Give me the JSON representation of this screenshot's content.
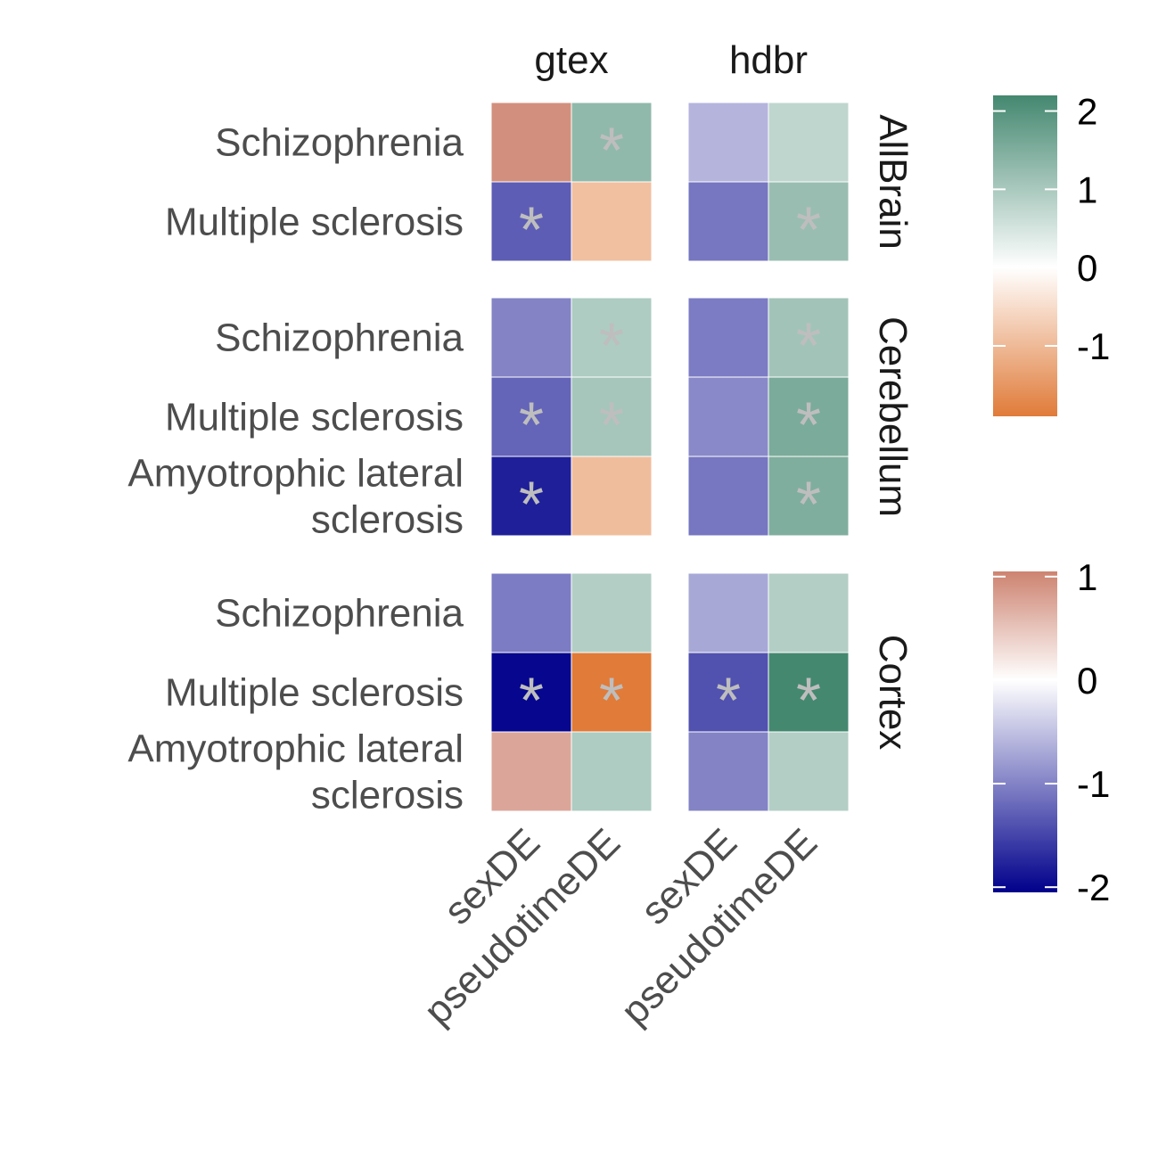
{
  "chart_data": {
    "type": "heatmap",
    "column_facets": [
      "gtex",
      "hdbr"
    ],
    "columns": [
      "sexDE",
      "pseudotimeDE"
    ],
    "row_facets": [
      {
        "name": "AllBrain",
        "rows": [
          "Schizophrenia",
          "Multiple sclerosis"
        ]
      },
      {
        "name": "Cerebellum",
        "rows": [
          "Schizophrenia",
          "Multiple sclerosis",
          "Amyotrophic lateral\nsclerosis"
        ]
      },
      {
        "name": "Cortex",
        "rows": [
          "Schizophrenia",
          "Multiple sclerosis",
          "Amyotrophic lateral\nsclerosis"
        ]
      }
    ],
    "cells": [
      {
        "row_facet": "AllBrain",
        "row": 0,
        "col_facet": "gtex",
        "col": "sexDE",
        "scale": "sexDE",
        "value": 0.95,
        "significant": false
      },
      {
        "row_facet": "AllBrain",
        "row": 0,
        "col_facet": "gtex",
        "col": "pseudotimeDE",
        "scale": "pseudotimeDE",
        "value": 1.3,
        "significant": true
      },
      {
        "row_facet": "AllBrain",
        "row": 1,
        "col_facet": "gtex",
        "col": "sexDE",
        "scale": "sexDE",
        "value": -1.3,
        "significant": true
      },
      {
        "row_facet": "AllBrain",
        "row": 1,
        "col_facet": "gtex",
        "col": "pseudotimeDE",
        "scale": "pseudotimeDE",
        "value": -0.9,
        "significant": false
      },
      {
        "row_facet": "AllBrain",
        "row": 0,
        "col_facet": "hdbr",
        "col": "sexDE",
        "scale": "sexDE",
        "value": -0.6,
        "significant": false
      },
      {
        "row_facet": "AllBrain",
        "row": 0,
        "col_facet": "hdbr",
        "col": "pseudotimeDE",
        "scale": "pseudotimeDE",
        "value": 0.75,
        "significant": false
      },
      {
        "row_facet": "AllBrain",
        "row": 1,
        "col_facet": "hdbr",
        "col": "sexDE",
        "scale": "sexDE",
        "value": -1.1,
        "significant": false
      },
      {
        "row_facet": "AllBrain",
        "row": 1,
        "col_facet": "hdbr",
        "col": "pseudotimeDE",
        "scale": "pseudotimeDE",
        "value": 1.2,
        "significant": true
      },
      {
        "row_facet": "Cerebellum",
        "row": 0,
        "col_facet": "gtex",
        "col": "sexDE",
        "scale": "sexDE",
        "value": -1.0,
        "significant": false
      },
      {
        "row_facet": "Cerebellum",
        "row": 0,
        "col_facet": "gtex",
        "col": "pseudotimeDE",
        "scale": "pseudotimeDE",
        "value": 0.95,
        "significant": true
      },
      {
        "row_facet": "Cerebellum",
        "row": 1,
        "col_facet": "gtex",
        "col": "sexDE",
        "scale": "sexDE",
        "value": -1.25,
        "significant": true
      },
      {
        "row_facet": "Cerebellum",
        "row": 1,
        "col_facet": "gtex",
        "col": "pseudotimeDE",
        "scale": "pseudotimeDE",
        "value": 1.05,
        "significant": true
      },
      {
        "row_facet": "Cerebellum",
        "row": 2,
        "col_facet": "gtex",
        "col": "sexDE",
        "scale": "sexDE",
        "value": -1.8,
        "significant": true
      },
      {
        "row_facet": "Cerebellum",
        "row": 2,
        "col_facet": "gtex",
        "col": "pseudotimeDE",
        "scale": "pseudotimeDE",
        "value": -0.95,
        "significant": false
      },
      {
        "row_facet": "Cerebellum",
        "row": 0,
        "col_facet": "hdbr",
        "col": "sexDE",
        "scale": "sexDE",
        "value": -1.05,
        "significant": false
      },
      {
        "row_facet": "Cerebellum",
        "row": 0,
        "col_facet": "hdbr",
        "col": "pseudotimeDE",
        "scale": "pseudotimeDE",
        "value": 1.1,
        "significant": true
      },
      {
        "row_facet": "Cerebellum",
        "row": 1,
        "col_facet": "hdbr",
        "col": "sexDE",
        "scale": "sexDE",
        "value": -0.95,
        "significant": false
      },
      {
        "row_facet": "Cerebellum",
        "row": 1,
        "col_facet": "hdbr",
        "col": "pseudotimeDE",
        "scale": "pseudotimeDE",
        "value": 1.55,
        "significant": true
      },
      {
        "row_facet": "Cerebellum",
        "row": 2,
        "col_facet": "hdbr",
        "col": "sexDE",
        "scale": "sexDE",
        "value": -1.1,
        "significant": false
      },
      {
        "row_facet": "Cerebellum",
        "row": 2,
        "col_facet": "hdbr",
        "col": "pseudotimeDE",
        "scale": "pseudotimeDE",
        "value": 1.5,
        "significant": true
      },
      {
        "row_facet": "Cortex",
        "row": 0,
        "col_facet": "gtex",
        "col": "sexDE",
        "scale": "sexDE",
        "value": -1.05,
        "significant": false
      },
      {
        "row_facet": "Cortex",
        "row": 0,
        "col_facet": "gtex",
        "col": "pseudotimeDE",
        "scale": "pseudotimeDE",
        "value": 0.9,
        "significant": false
      },
      {
        "row_facet": "Cortex",
        "row": 1,
        "col_facet": "gtex",
        "col": "sexDE",
        "scale": "sexDE",
        "value": -2.0,
        "significant": true
      },
      {
        "row_facet": "Cortex",
        "row": 1,
        "col_facet": "gtex",
        "col": "pseudotimeDE",
        "scale": "pseudotimeDE",
        "value": -1.9,
        "significant": true
      },
      {
        "row_facet": "Cortex",
        "row": 2,
        "col_facet": "gtex",
        "col": "sexDE",
        "scale": "sexDE",
        "value": 0.75,
        "significant": false
      },
      {
        "row_facet": "Cortex",
        "row": 2,
        "col_facet": "gtex",
        "col": "pseudotimeDE",
        "scale": "pseudotimeDE",
        "value": 0.95,
        "significant": false
      },
      {
        "row_facet": "Cortex",
        "row": 0,
        "col_facet": "hdbr",
        "col": "sexDE",
        "scale": "sexDE",
        "value": -0.7,
        "significant": false
      },
      {
        "row_facet": "Cortex",
        "row": 0,
        "col_facet": "hdbr",
        "col": "pseudotimeDE",
        "scale": "pseudotimeDE",
        "value": 0.9,
        "significant": false
      },
      {
        "row_facet": "Cortex",
        "row": 1,
        "col_facet": "hdbr",
        "col": "sexDE",
        "scale": "sexDE",
        "value": -1.4,
        "significant": true
      },
      {
        "row_facet": "Cortex",
        "row": 1,
        "col_facet": "hdbr",
        "col": "pseudotimeDE",
        "scale": "pseudotimeDE",
        "value": 2.2,
        "significant": true
      },
      {
        "row_facet": "Cortex",
        "row": 2,
        "col_facet": "hdbr",
        "col": "sexDE",
        "scale": "sexDE",
        "value": -1.0,
        "significant": false
      },
      {
        "row_facet": "Cortex",
        "row": 2,
        "col_facet": "hdbr",
        "col": "pseudotimeDE",
        "scale": "pseudotimeDE",
        "value": 0.9,
        "significant": false
      }
    ],
    "significance_marker": "*",
    "legends": [
      {
        "scale": "pseudotimeDE",
        "range": [
          -1.9,
          2.2
        ],
        "ticks": [
          2,
          1,
          0,
          -1
        ],
        "tick_labels": [
          "2",
          "1",
          "0",
          "-1"
        ],
        "colors": {
          "low": "#e07b39",
          "mid": "#ffffff",
          "high": "#448870"
        }
      },
      {
        "scale": "sexDE",
        "range": [
          -2.05,
          1.05
        ],
        "ticks": [
          1,
          0,
          -1,
          -2
        ],
        "tick_labels": [
          "1",
          "0",
          "-1",
          "-2"
        ],
        "colors": {
          "low": "#00008b",
          "mid": "#ffffff",
          "high": "#cd8370"
        }
      }
    ],
    "legend_placement": "right",
    "grid": false
  }
}
